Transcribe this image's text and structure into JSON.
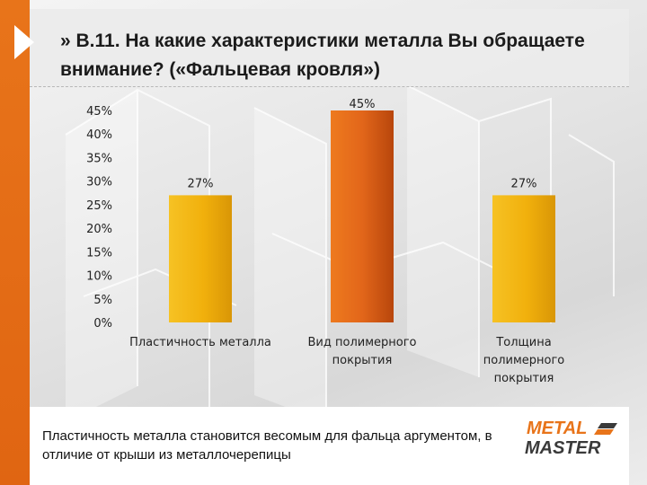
{
  "slide": {
    "title": "» В.11. На какие характеристики металла Вы обращаете внимание? («Фальцевая кровля»)",
    "caption": "Пластичность металла становится весомым для фальца аргументом, в отличие от крыши из металлочерепицы",
    "logo": {
      "line1": "METAL",
      "line2": "MASTER",
      "icon": "logo-mark-icon"
    },
    "colors": {
      "stripe": "#e8741a",
      "arrow": "#ffffff",
      "logo_orange": "#e8741a",
      "logo_dark": "#3a3a3a"
    }
  },
  "chart_data": {
    "type": "bar",
    "title": "",
    "xlabel": "",
    "ylabel": "",
    "categories": [
      "Пластичность металла",
      "Вид полимерного покрытия",
      "Толщина полимерного покрытия"
    ],
    "category_lines": [
      [
        "Пластичность металла"
      ],
      [
        "Вид полимерного",
        "покрытия"
      ],
      [
        "Толщина",
        "полимерного",
        "покрытия"
      ]
    ],
    "values": [
      27,
      45,
      27
    ],
    "data_labels": [
      "27%",
      "45%",
      "27%"
    ],
    "bar_colors": [
      "#f3b40f",
      "#e2661a",
      "#f3b40f"
    ],
    "ylim": [
      0,
      45
    ],
    "yticks": [
      "0%",
      "5%",
      "10%",
      "15%",
      "20%",
      "25%",
      "30%",
      "35%",
      "40%",
      "45%"
    ],
    "grid": false,
    "legend": "none"
  }
}
